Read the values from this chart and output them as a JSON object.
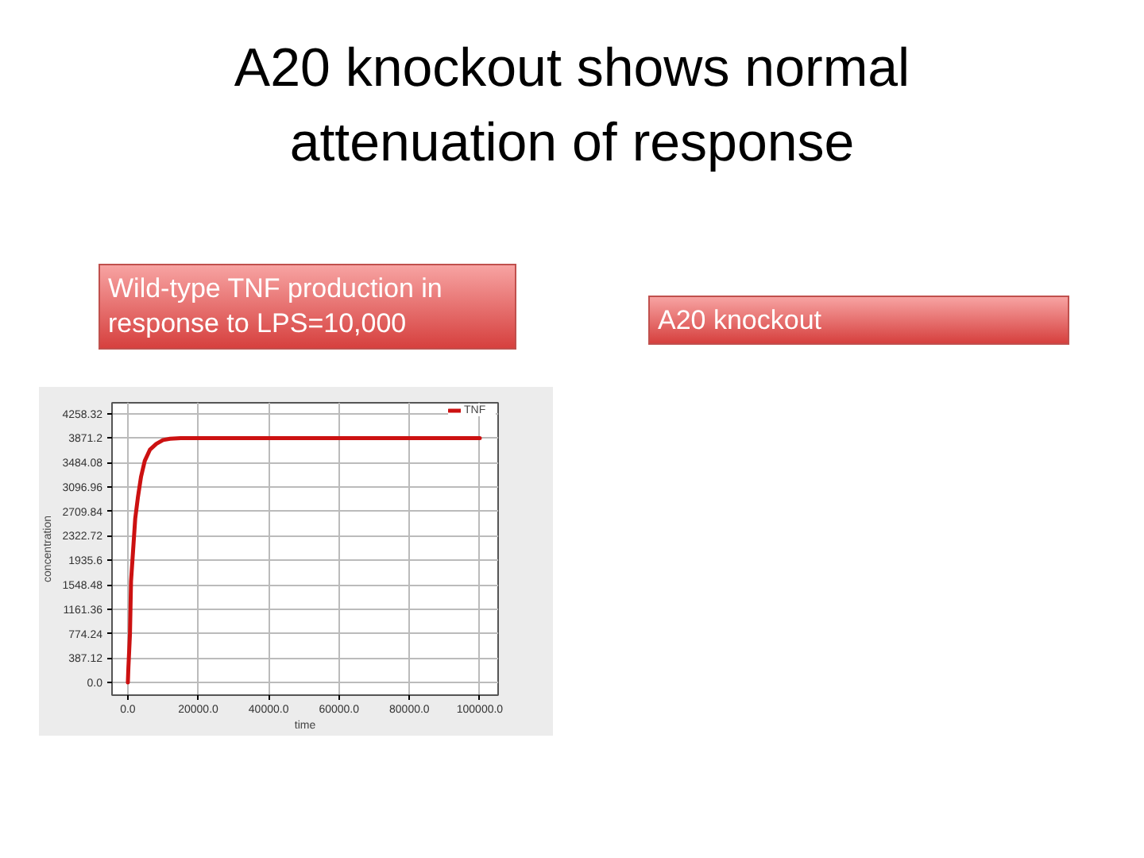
{
  "chart_data": {
    "type": "line",
    "title": "A20 knockout shows normal attenuation of response",
    "annotations": [
      "Wild-type TNF production in response to LPS=10,000",
      "A20 knockout"
    ],
    "xlabel": "time",
    "ylabel": "concentration",
    "x": [
      0,
      150,
      600,
      900,
      1500,
      2100,
      2850,
      3750,
      4800,
      6300,
      8100,
      10000,
      12000,
      15000,
      100000
    ],
    "series": [
      {
        "name": "TNF",
        "color": "#cc1111",
        "values": [
          0,
          230,
          770,
          1600,
          2100,
          2600,
          2930,
          3260,
          3510,
          3690,
          3780,
          3840,
          3860,
          3870,
          3870
        ]
      }
    ],
    "xlim": [
      -4500,
      105200
    ],
    "ylim": [
      -200,
      4430
    ],
    "xticks": [
      {
        "value": 0,
        "label": "0.0"
      },
      {
        "value": 20000,
        "label": "20000.0"
      },
      {
        "value": 40000,
        "label": "40000.0"
      },
      {
        "value": 60000,
        "label": "60000.0"
      },
      {
        "value": 80000,
        "label": "80000.0"
      },
      {
        "value": 100000,
        "label": "100000.0"
      }
    ],
    "yticks": [
      {
        "value": 0,
        "label": "0.0"
      },
      387.12,
      774.24,
      1161.36,
      1548.48,
      1935.6,
      2322.72,
      2709.84,
      3096.96,
      3484.08,
      3871.2,
      4258.32
    ],
    "grid": true,
    "legend": "top right",
    "line_style": "solid"
  }
}
